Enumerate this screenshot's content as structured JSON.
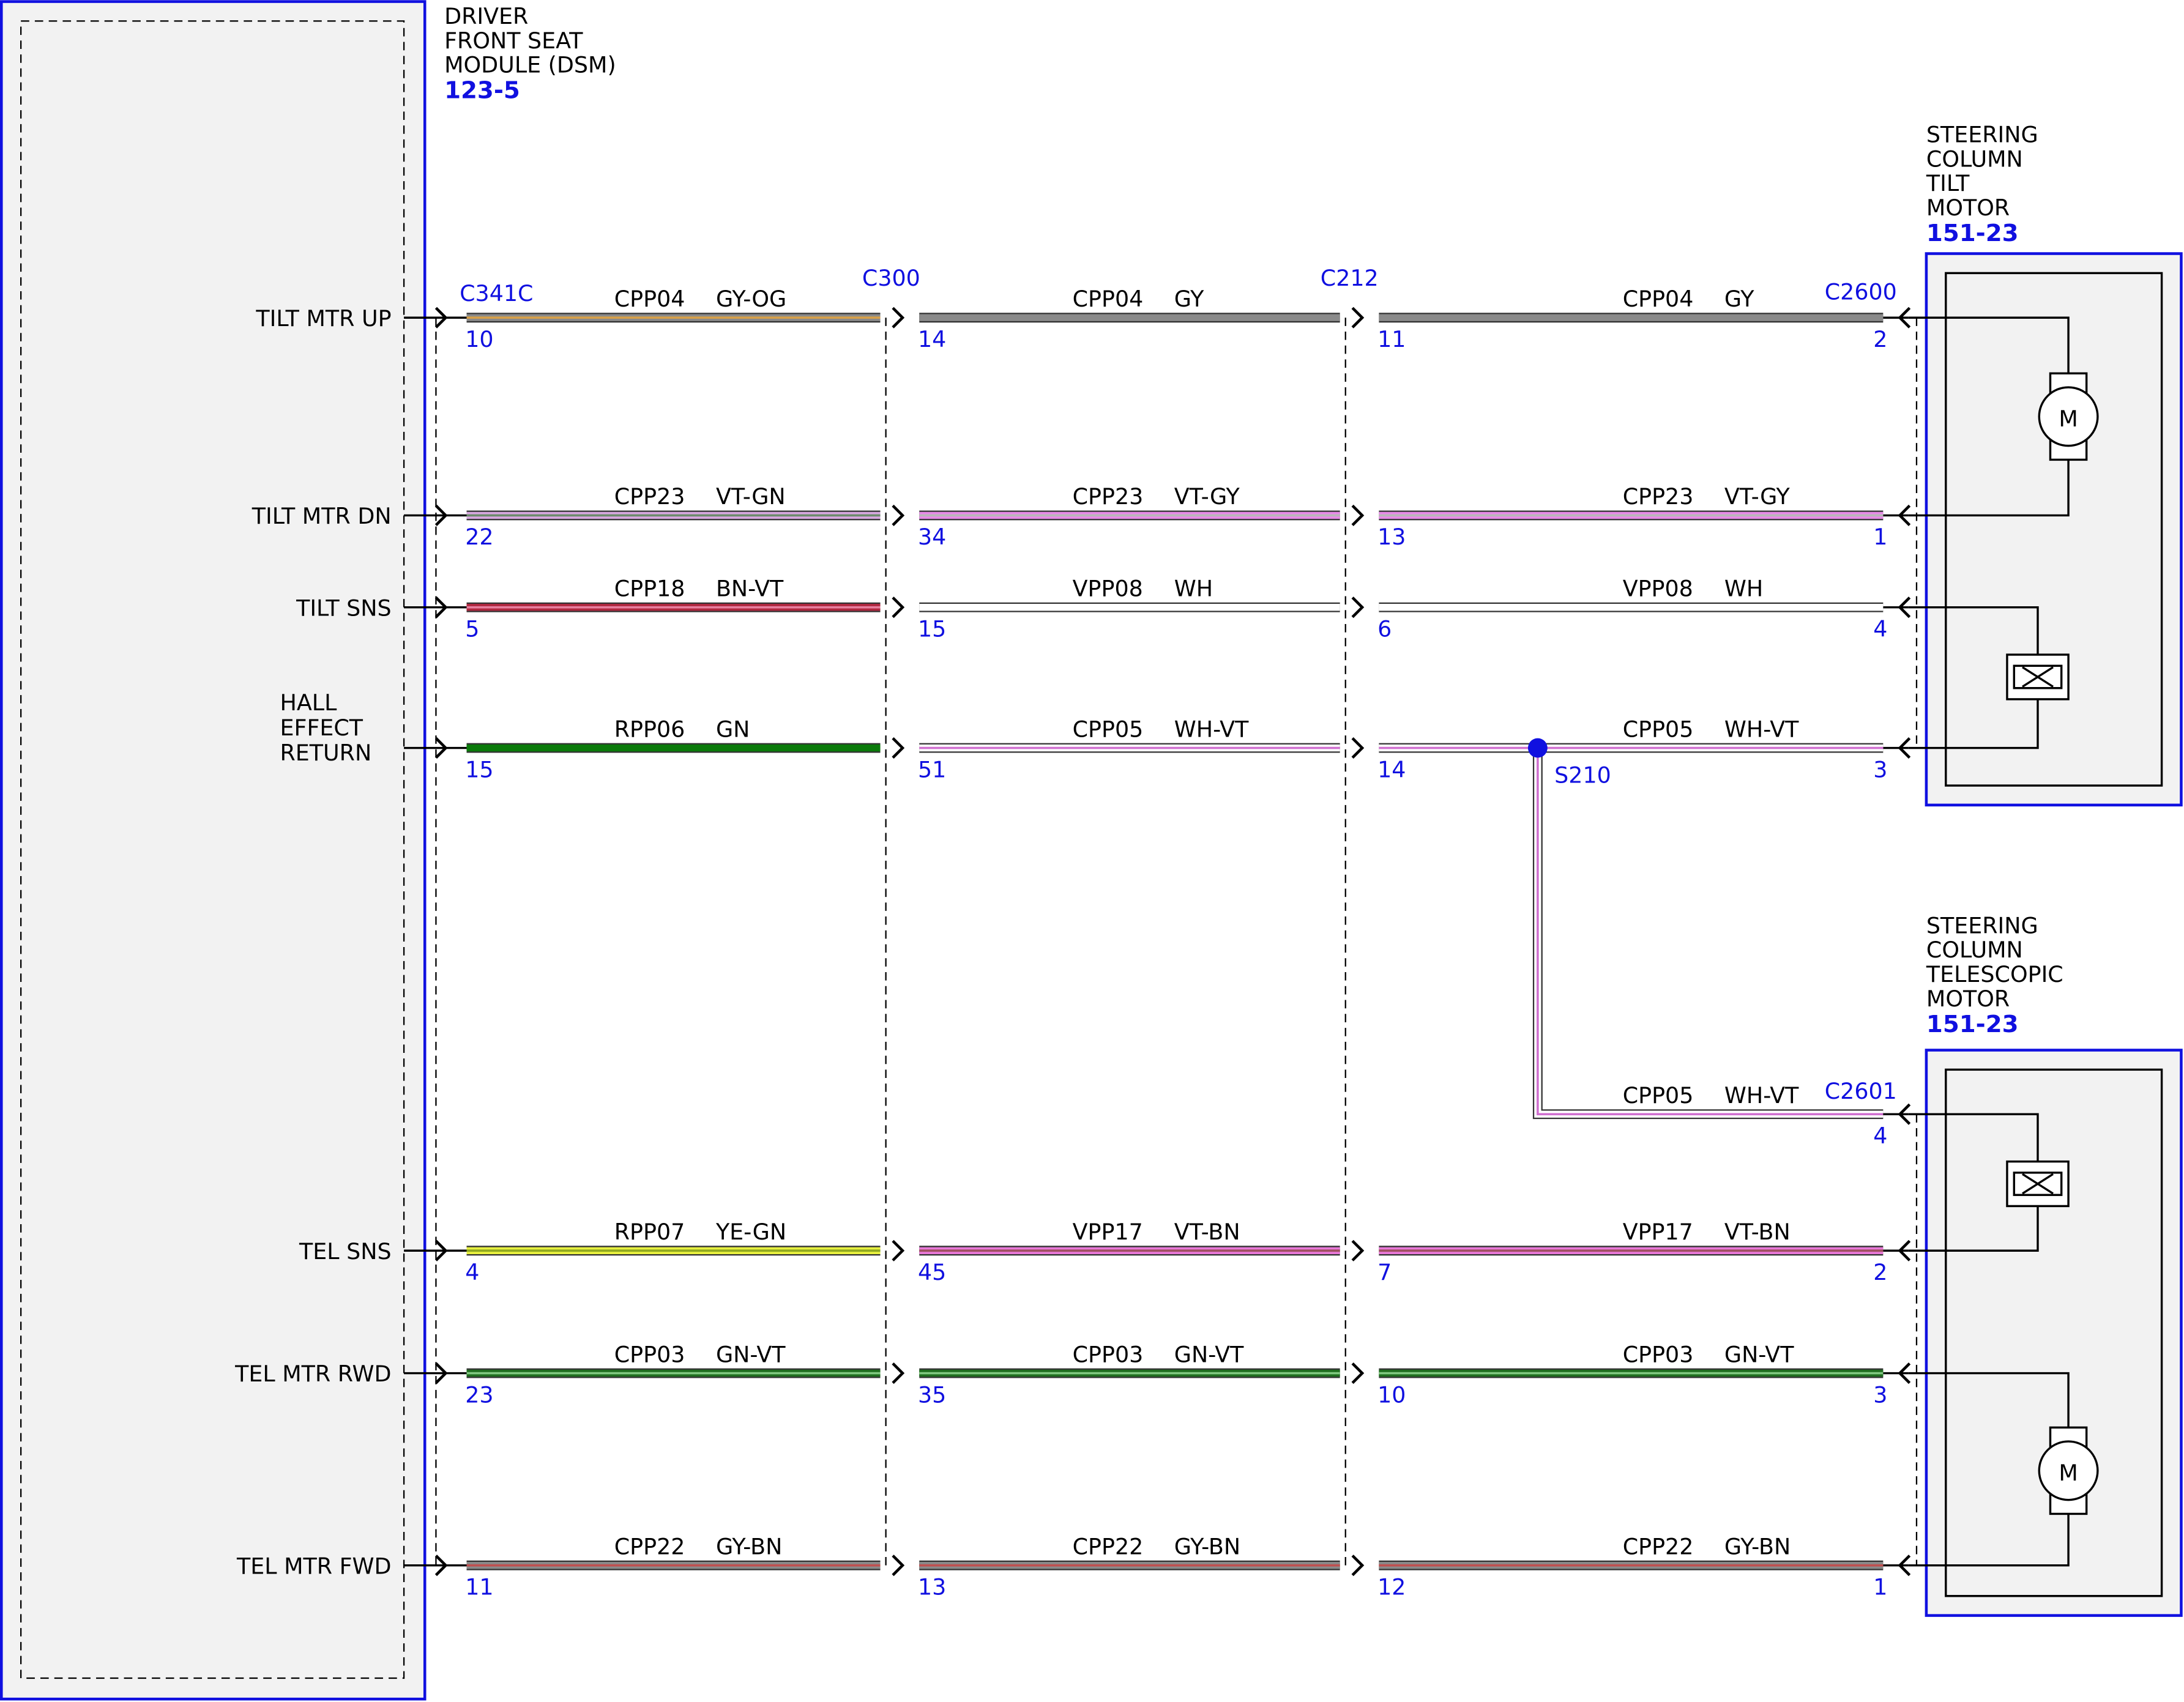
{
  "modules": [
    {
      "name_lines": [
        "DRIVER",
        "FRONT SEAT",
        "MODULE (DSM)"
      ],
      "ref": "123-5"
    },
    {
      "name_lines": [
        "STEERING",
        "COLUMN",
        "TILT",
        "MOTOR"
      ],
      "ref": "151-23",
      "motor_label": "M"
    },
    {
      "name_lines": [
        "STEERING",
        "COLUMN",
        "TELESCOPIC",
        "MOTOR"
      ],
      "ref": "151-23",
      "motor_label": "M"
    }
  ],
  "connectors": [
    "C341C",
    "C300",
    "C212",
    "C2600",
    "C2601"
  ],
  "rows": [
    {
      "signal": [
        "TILT MTR UP"
      ],
      "segments": [
        {
          "circuit": "CPP04",
          "color": "GY-OG",
          "pin": "10",
          "wire": [
            "#8a8a8a",
            "#d8a048"
          ]
        },
        {
          "circuit": "CPP04",
          "color": "GY",
          "pin": "14",
          "wire": [
            "#8a8a8a",
            "#8a8a8a"
          ]
        },
        {
          "circuit": "CPP04",
          "color": "GY",
          "pin": "11",
          "wire": [
            "#8a8a8a",
            "#8a8a8a"
          ]
        }
      ],
      "end_pin": "2"
    },
    {
      "signal": [
        "TILT MTR DN"
      ],
      "segments": [
        {
          "circuit": "CPP23",
          "color": "VT-GN",
          "pin": "22",
          "wire": [
            "#d8a8e0",
            "#6c8c6c"
          ]
        },
        {
          "circuit": "CPP23",
          "color": "VT-GY",
          "pin": "34",
          "wire": [
            "#e88ae8",
            "#b8b8b8"
          ]
        },
        {
          "circuit": "CPP23",
          "color": "VT-GY",
          "pin": "13",
          "wire": [
            "#e88ae8",
            "#b8b8b8"
          ]
        }
      ],
      "end_pin": "1"
    },
    {
      "signal": [
        "TILT SNS"
      ],
      "segments": [
        {
          "circuit": "CPP18",
          "color": "BN-VT",
          "pin": "5",
          "wire": [
            "#b02840",
            "#e880a0"
          ]
        },
        {
          "circuit": "VPP08",
          "color": "WH",
          "pin": "15",
          "wire": [
            "#ffffff",
            "#ffffff"
          ]
        },
        {
          "circuit": "VPP08",
          "color": "WH",
          "pin": "6",
          "wire": [
            "#ffffff",
            "#ffffff"
          ]
        }
      ],
      "end_pin": "4"
    },
    {
      "signal": [
        "HALL",
        "EFFECT",
        "RETURN"
      ],
      "segments": [
        {
          "circuit": "RPP06",
          "color": "GN",
          "pin": "15",
          "wire": [
            "#0a7a0a",
            "#0a7a0a"
          ]
        },
        {
          "circuit": "CPP05",
          "color": "WH-VT",
          "pin": "51",
          "wire": [
            "#ffffff",
            "#d070d0"
          ]
        },
        {
          "pin": "14",
          "wire": [
            "#ffffff",
            "#d070d0"
          ]
        }
      ],
      "splice": "S210",
      "after_splice": {
        "circuit": "CPP05",
        "color": "WH-VT"
      },
      "end_pin": "3",
      "branch": {
        "circuit": "CPP05",
        "color": "WH-VT",
        "pin": "4"
      }
    },
    {
      "signal": [
        "TEL SNS"
      ],
      "segments": [
        {
          "circuit": "RPP07",
          "color": "YE-GN",
          "pin": "4",
          "wire": [
            "#e8f040",
            "#90a820"
          ]
        },
        {
          "circuit": "VPP17",
          "color": "VT-BN",
          "pin": "45",
          "wire": [
            "#e878d8",
            "#a05060"
          ]
        },
        {
          "circuit": "VPP17",
          "color": "VT-BN",
          "pin": "7",
          "wire": [
            "#e878d8",
            "#a05060"
          ]
        }
      ],
      "end_pin": "2"
    },
    {
      "signal": [
        "TEL MTR RWD"
      ],
      "segments": [
        {
          "circuit": "CPP03",
          "color": "GN-VT",
          "pin": "23",
          "wire": [
            "#1e6e1e",
            "#80c880"
          ]
        },
        {
          "circuit": "CPP03",
          "color": "GN-VT",
          "pin": "35",
          "wire": [
            "#1e6e1e",
            "#80c880"
          ]
        },
        {
          "circuit": "CPP03",
          "color": "GN-VT",
          "pin": "10",
          "wire": [
            "#1e6e1e",
            "#80c880"
          ]
        }
      ],
      "end_pin": "3"
    },
    {
      "signal": [
        "TEL MTR FWD"
      ],
      "segments": [
        {
          "circuit": "CPP22",
          "color": "GY-BN",
          "pin": "11",
          "wire": [
            "#8a8a8a",
            "#c05050"
          ]
        },
        {
          "circuit": "CPP22",
          "color": "GY-BN",
          "pin": "13",
          "wire": [
            "#8a8a8a",
            "#c05050"
          ]
        },
        {
          "circuit": "CPP22",
          "color": "GY-BN",
          "pin": "12",
          "wire": [
            "#8a8a8a",
            "#c05050"
          ]
        }
      ],
      "end_pin": "1"
    }
  ]
}
